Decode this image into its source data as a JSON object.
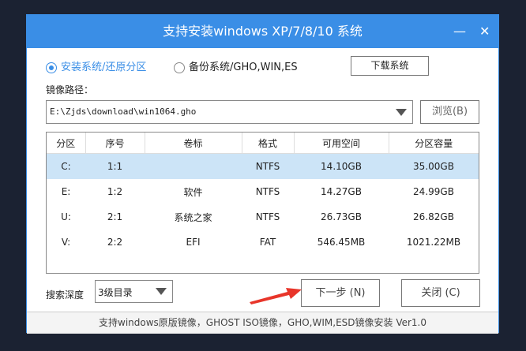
{
  "title": "支持安装windows XP/7/8/10 系统",
  "minimize_icon": "minimize-icon",
  "close_icon": "close-icon",
  "modes": [
    {
      "label": "安装系统/还原分区",
      "selected": true
    },
    {
      "label": "备份系统/GHO,WIN,ES",
      "selected": false
    }
  ],
  "download_label": "下载系统",
  "path_label": "镜像路径：",
  "path_value": "E:\\Zjds\\download\\win1064.gho",
  "browse_label": "浏览(B)",
  "table": {
    "headers": [
      "分区",
      "序号",
      "卷标",
      "格式",
      "可用空间",
      "分区容量"
    ],
    "rows": [
      [
        "C:",
        "1:1",
        "",
        "NTFS",
        "14.10GB",
        "35.00GB"
      ],
      [
        "E:",
        "1:2",
        "软件",
        "NTFS",
        "14.27GB",
        "24.99GB"
      ],
      [
        "U:",
        "2:1",
        "系统之家",
        "NTFS",
        "26.73GB",
        "26.82GB"
      ],
      [
        "V:",
        "2:2",
        "EFI",
        "FAT",
        "546.45MB",
        "1021.22MB"
      ]
    ],
    "selected_row": 0
  },
  "depth_label": "搜索深度",
  "depth_value": "3级目录",
  "next_label": "下一步 (N)",
  "close_label": "关闭 (C)",
  "footer": "支持windows原版镜像，GHOST ISO镜像，GHO,WIM,ESD镜像安装 Ver1.0",
  "colors": {
    "accent": "#3a8ee6",
    "selected_row": "#cce4f7",
    "arrow": "#e8352a"
  }
}
